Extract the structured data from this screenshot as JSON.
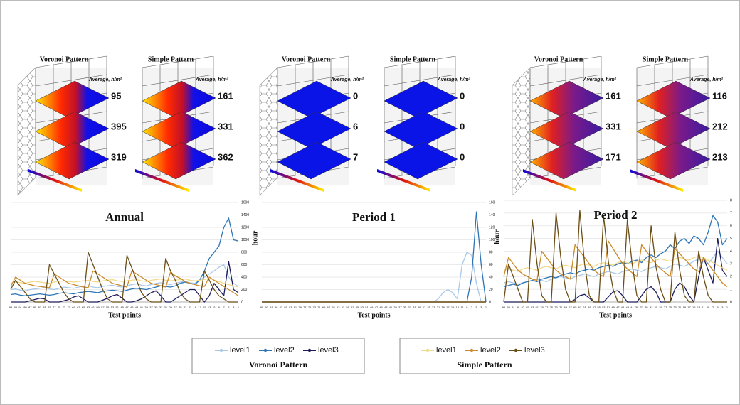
{
  "renders": [
    {
      "panels": [
        {
          "title": "Voronoi Pattern",
          "average_label": "Average, h/m²",
          "levels": [
            95,
            395,
            319
          ]
        },
        {
          "title": "Simple Pattern",
          "average_label": "Average, h/m²",
          "levels": [
            161,
            331,
            362
          ]
        }
      ]
    },
    {
      "panels": [
        {
          "title": "Voronoi Pattern",
          "average_label": "Average, h/m²",
          "levels": [
            0,
            6,
            7
          ]
        },
        {
          "title": "Simple Pattern",
          "average_label": "Average, h/m²",
          "levels": [
            0,
            0,
            0
          ]
        }
      ]
    },
    {
      "panels": [
        {
          "title": "Voronoi Pattern",
          "average_label": "Average, h/m²",
          "levels": [
            161,
            331,
            171
          ]
        },
        {
          "title": "Simple Pattern",
          "average_label": "Average, h/m²",
          "levels": [
            116,
            212,
            213
          ]
        }
      ]
    }
  ],
  "chart_data": [
    {
      "type": "line",
      "title": "Annual",
      "x_label": "Test points",
      "categories": [
        95,
        93,
        91,
        89,
        87,
        85,
        83,
        81,
        79,
        77,
        75,
        73,
        71,
        69,
        67,
        65,
        63,
        61,
        59,
        57,
        55,
        53,
        51,
        49,
        47,
        45,
        43,
        41,
        39,
        37,
        35,
        33,
        31,
        29,
        27,
        25,
        23,
        21,
        19,
        17,
        15,
        13,
        11,
        9,
        7,
        5,
        3,
        1
      ],
      "ylim": [
        0,
        1600
      ],
      "yticks": [
        0,
        200,
        400,
        600,
        800,
        1000,
        1200,
        1400,
        1600
      ],
      "grid": true,
      "series": [
        {
          "values": [
            200,
            210,
            190,
            180,
            200,
            210,
            220,
            230,
            210,
            200,
            220,
            240,
            230,
            220,
            240,
            250,
            260,
            240,
            230,
            250,
            260,
            270,
            250,
            240,
            260,
            280,
            290,
            270,
            260,
            280,
            300,
            310,
            290,
            280,
            300,
            320,
            330,
            310,
            300,
            350,
            400,
            450,
            500,
            560,
            600,
            400,
            300,
            250
          ]
        },
        {
          "values": [
            120,
            130,
            110,
            100,
            110,
            120,
            130,
            120,
            110,
            120,
            140,
            150,
            140,
            130,
            150,
            160,
            170,
            160,
            150,
            170,
            180,
            190,
            180,
            170,
            190,
            210,
            220,
            210,
            200,
            220,
            240,
            260,
            250,
            240,
            260,
            300,
            320,
            300,
            280,
            350,
            500,
            700,
            800,
            900,
            1200,
            1350,
            1000,
            980
          ]
        },
        {
          "values": [
            0,
            0,
            0,
            0,
            20,
            40,
            60,
            50,
            0,
            0,
            0,
            20,
            40,
            80,
            100,
            50,
            0,
            0,
            0,
            30,
            60,
            100,
            120,
            60,
            0,
            0,
            20,
            50,
            100,
            150,
            180,
            100,
            0,
            0,
            50,
            100,
            150,
            200,
            200,
            100,
            0,
            100,
            300,
            200,
            100,
            650,
            200,
            150
          ]
        },
        {
          "values": [
            300,
            320,
            310,
            300,
            320,
            330,
            320,
            310,
            300,
            320,
            330,
            340,
            330,
            320,
            330,
            340,
            350,
            330,
            320,
            340,
            350,
            360,
            340,
            330,
            340,
            350,
            360,
            340,
            330,
            350,
            360,
            370,
            350,
            340,
            350,
            360,
            370,
            350,
            340,
            350,
            360,
            380,
            350,
            330,
            300,
            280,
            260,
            240
          ]
        },
        {
          "values": [
            250,
            400,
            350,
            300,
            280,
            260,
            250,
            240,
            230,
            450,
            400,
            350,
            300,
            280,
            260,
            240,
            230,
            500,
            450,
            400,
            350,
            300,
            280,
            260,
            240,
            500,
            450,
            400,
            350,
            300,
            280,
            260,
            240,
            480,
            420,
            380,
            330,
            300,
            280,
            260,
            250,
            400,
            350,
            300,
            250,
            200,
            150,
            100
          ]
        },
        {
          "values": [
            200,
            350,
            250,
            150,
            50,
            0,
            0,
            0,
            600,
            450,
            300,
            150,
            50,
            0,
            0,
            0,
            800,
            600,
            400,
            200,
            50,
            0,
            0,
            0,
            750,
            550,
            350,
            150,
            50,
            0,
            0,
            0,
            700,
            500,
            350,
            150,
            50,
            0,
            0,
            0,
            500,
            350,
            200,
            100,
            50,
            0,
            0,
            0
          ]
        }
      ]
    },
    {
      "type": "line",
      "title": "Period 1",
      "x_label": "Test points",
      "y_label": "hour",
      "categories": [
        95,
        93,
        91,
        89,
        87,
        85,
        83,
        81,
        79,
        77,
        75,
        73,
        71,
        69,
        67,
        65,
        63,
        61,
        59,
        57,
        55,
        53,
        51,
        49,
        47,
        45,
        43,
        41,
        39,
        37,
        35,
        33,
        31,
        29,
        27,
        25,
        23,
        21,
        19,
        17,
        15,
        13,
        11,
        9,
        7,
        5,
        3,
        1
      ],
      "ylim": [
        0,
        160
      ],
      "yticks": [
        0,
        20,
        40,
        60,
        80,
        100,
        120,
        140,
        160
      ],
      "grid": true,
      "series": [
        {
          "values": [
            0,
            0,
            0,
            0,
            0,
            0,
            0,
            0,
            0,
            0,
            0,
            0,
            0,
            0,
            0,
            0,
            0,
            0,
            0,
            0,
            0,
            0,
            0,
            0,
            0,
            0,
            0,
            0,
            0,
            0,
            0,
            0,
            0,
            0,
            0,
            0,
            0,
            5,
            15,
            20,
            15,
            5,
            60,
            80,
            75,
            30,
            0,
            0
          ]
        },
        {
          "values": [
            0,
            0,
            0,
            0,
            0,
            0,
            0,
            0,
            0,
            0,
            0,
            0,
            0,
            0,
            0,
            0,
            0,
            0,
            0,
            0,
            0,
            0,
            0,
            0,
            0,
            0,
            0,
            0,
            0,
            0,
            0,
            0,
            0,
            0,
            0,
            0,
            0,
            0,
            0,
            0,
            0,
            0,
            0,
            0,
            40,
            145,
            60,
            0
          ]
        },
        {
          "values": [
            0,
            0,
            0,
            0,
            0,
            0,
            0,
            0,
            0,
            0,
            0,
            0,
            0,
            0,
            0,
            0,
            0,
            0,
            0,
            0,
            0,
            0,
            0,
            0,
            0,
            0,
            0,
            0,
            0,
            0,
            0,
            0,
            0,
            0,
            0,
            0,
            0,
            0,
            0,
            0,
            0,
            0,
            0,
            0,
            0,
            0,
            0,
            0
          ]
        },
        {
          "values": [
            0,
            0,
            0,
            0,
            0,
            0,
            0,
            0,
            0,
            0,
            0,
            0,
            0,
            0,
            0,
            0,
            0,
            0,
            0,
            0,
            0,
            0,
            0,
            0,
            0,
            0,
            0,
            0,
            0,
            0,
            0,
            0,
            0,
            0,
            0,
            0,
            0,
            0,
            0,
            0,
            0,
            0,
            0,
            0,
            0,
            0,
            0,
            0
          ]
        },
        {
          "values": [
            0,
            0,
            0,
            0,
            0,
            0,
            0,
            0,
            0,
            0,
            0,
            0,
            0,
            0,
            0,
            0,
            0,
            0,
            0,
            0,
            0,
            0,
            0,
            0,
            0,
            0,
            0,
            0,
            0,
            0,
            0,
            0,
            0,
            0,
            0,
            0,
            0,
            0,
            0,
            0,
            0,
            0,
            0,
            0,
            0,
            0,
            0,
            0
          ]
        },
        {
          "values": [
            0,
            0,
            0,
            0,
            0,
            0,
            0,
            0,
            0,
            0,
            0,
            0,
            0,
            0,
            0,
            0,
            0,
            0,
            0,
            0,
            0,
            0,
            0,
            0,
            0,
            0,
            0,
            0,
            0,
            0,
            0,
            0,
            0,
            0,
            0,
            0,
            0,
            0,
            0,
            0,
            0,
            0,
            0,
            0,
            0,
            0,
            0,
            0
          ]
        }
      ]
    },
    {
      "type": "line",
      "title": "Period 2",
      "x_label": "Test points",
      "y_label": "hour",
      "categories": [
        95,
        93,
        91,
        89,
        87,
        85,
        83,
        81,
        79,
        77,
        75,
        73,
        71,
        69,
        67,
        65,
        63,
        61,
        59,
        57,
        55,
        53,
        51,
        49,
        47,
        45,
        43,
        41,
        39,
        37,
        35,
        33,
        31,
        29,
        27,
        25,
        23,
        21,
        19,
        17,
        15,
        13,
        11,
        9,
        7,
        5,
        3,
        1
      ],
      "ylim": [
        0,
        8
      ],
      "yticks": [
        0,
        1,
        2,
        3,
        4,
        5,
        6,
        7,
        8
      ],
      "grid": true,
      "series": [
        {
          "values": [
            1.5,
            1.6,
            1.5,
            1.4,
            1.5,
            1.6,
            1.7,
            1.8,
            1.7,
            1.6,
            1.8,
            1.9,
            2.0,
            1.9,
            1.8,
            2.0,
            2.1,
            2.2,
            2.1,
            2.0,
            2.2,
            2.3,
            2.4,
            2.3,
            2.2,
            2.4,
            2.5,
            2.6,
            2.5,
            2.4,
            2.6,
            2.7,
            2.8,
            2.7,
            2.6,
            2.8,
            3.0,
            2.9,
            2.8,
            3.0,
            3.2,
            3.4,
            3.2,
            3.0,
            3.5,
            4.0,
            3.5,
            3.0
          ]
        },
        {
          "values": [
            1.2,
            1.3,
            1.4,
            1.3,
            1.5,
            1.6,
            1.7,
            1.6,
            1.8,
            1.9,
            2.0,
            1.9,
            2.1,
            2.2,
            2.3,
            2.2,
            2.4,
            2.5,
            2.6,
            2.5,
            2.7,
            2.8,
            2.9,
            2.8,
            3.0,
            3.1,
            3.0,
            3.2,
            3.3,
            3.1,
            3.5,
            3.7,
            3.5,
            3.8,
            4.0,
            4.5,
            4.2,
            4.8,
            5.0,
            4.6,
            5.2,
            5.0,
            4.5,
            5.5,
            6.8,
            6.3,
            4.5,
            5.0
          ]
        },
        {
          "values": [
            0,
            0,
            0,
            0,
            0,
            0,
            0,
            0,
            0,
            0,
            0,
            0,
            0,
            0,
            0,
            0.2,
            0.5,
            0.6,
            0.3,
            0,
            0,
            0,
            0.4,
            0.8,
            0.9,
            0.5,
            0,
            0,
            0,
            0.5,
            1.0,
            1.2,
            0.8,
            0,
            0,
            0,
            1.0,
            1.5,
            1.2,
            0.5,
            0,
            2.0,
            3.5,
            2.5,
            1.5,
            5.0,
            2.5,
            2.0
          ]
        },
        {
          "values": [
            2.5,
            2.6,
            2.5,
            2.4,
            2.6,
            2.7,
            2.6,
            2.5,
            2.7,
            2.8,
            2.7,
            2.6,
            2.8,
            2.9,
            2.8,
            2.7,
            2.9,
            3.0,
            2.9,
            2.8,
            3.0,
            3.1,
            3.0,
            2.9,
            3.1,
            3.2,
            3.1,
            3.0,
            3.2,
            3.3,
            3.2,
            3.1,
            3.3,
            3.4,
            3.3,
            3.2,
            3.4,
            3.5,
            3.4,
            3.3,
            3.5,
            3.6,
            3.5,
            3.3,
            3.1,
            2.9,
            2.7,
            2.5
          ]
        },
        {
          "values": [
            2.0,
            3.5,
            3.0,
            2.5,
            2.2,
            2.0,
            1.8,
            1.7,
            4.0,
            3.5,
            3.0,
            2.5,
            2.2,
            2.0,
            1.8,
            4.5,
            4.0,
            3.5,
            3.0,
            2.5,
            2.2,
            2.0,
            4.8,
            4.2,
            3.6,
            3.0,
            2.6,
            2.3,
            2.0,
            4.5,
            4.0,
            3.5,
            3.0,
            2.6,
            2.3,
            2.0,
            4.2,
            3.8,
            3.4,
            3.0,
            2.6,
            2.4,
            3.5,
            3.0,
            2.5,
            2.0,
            1.5,
            1.2
          ]
        },
        {
          "values": [
            0,
            3.0,
            2.0,
            1.0,
            0,
            0,
            6.5,
            3.0,
            0.5,
            0,
            0,
            7.0,
            3.5,
            1.0,
            0,
            0,
            7.2,
            3.0,
            0.5,
            0,
            0,
            6.8,
            3.2,
            1.0,
            0,
            0,
            6.5,
            3.0,
            0.5,
            0,
            0,
            6.0,
            2.8,
            1.0,
            0,
            0,
            5.5,
            2.5,
            0.5,
            0,
            0,
            4.0,
            2.0,
            0.5,
            0,
            0,
            0,
            0
          ]
        }
      ]
    }
  ],
  "legends": [
    {
      "title": "Voronoi Pattern",
      "entries": [
        {
          "name": "level1",
          "color": "#a9c8e8"
        },
        {
          "name": "level2",
          "color": "#2e75b6"
        },
        {
          "name": "level3",
          "color": "#1c1c5c"
        }
      ]
    },
    {
      "title": "Simple Pattern",
      "entries": [
        {
          "name": "level1",
          "color": "#f2d98a"
        },
        {
          "name": "level2",
          "color": "#c98a2b"
        },
        {
          "name": "level3",
          "color": "#6b4e16"
        }
      ]
    }
  ]
}
